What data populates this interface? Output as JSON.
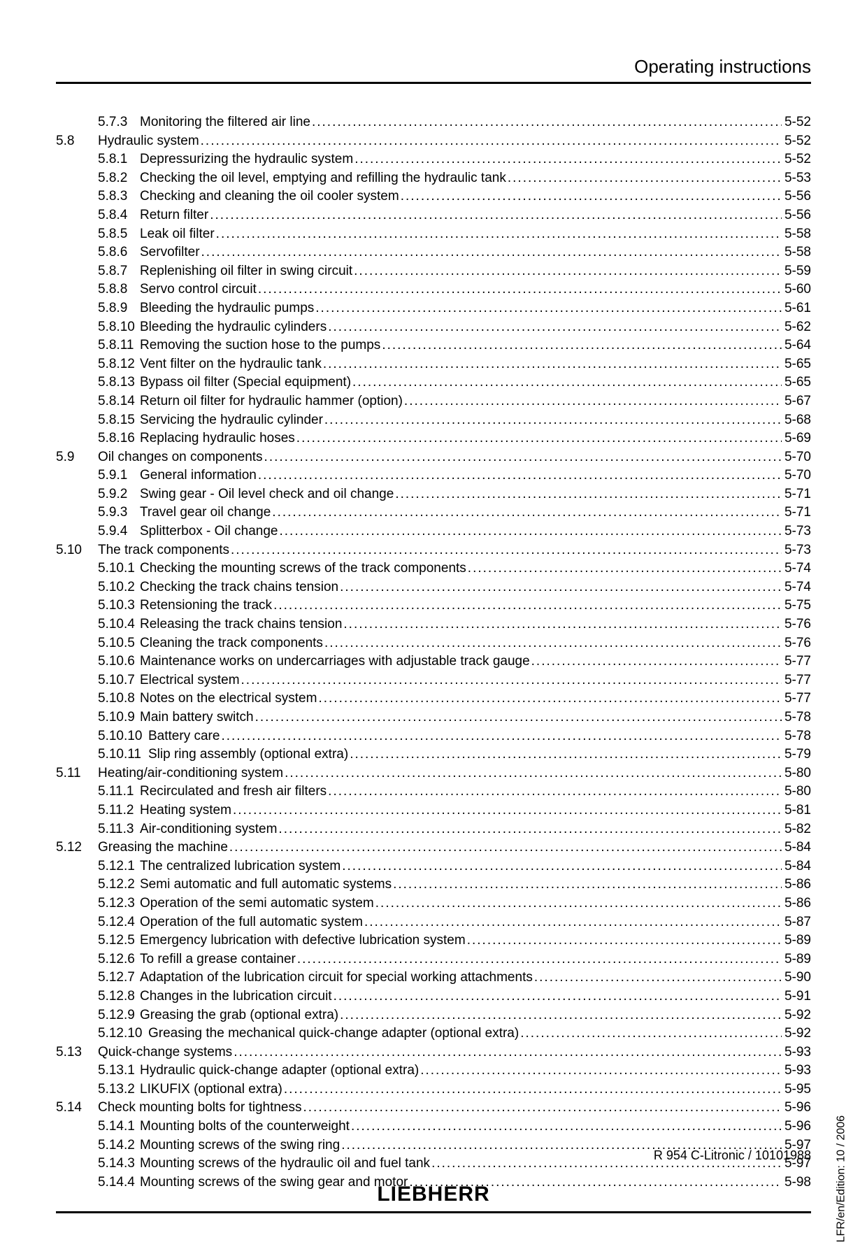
{
  "header": {
    "title": "Operating instructions"
  },
  "sideText": "LFR/en/Edition: 10 / 2006",
  "footer": {
    "docid": "R 954 C-Litronic / 10101988",
    "logo": "LIEBHERR"
  },
  "toc": [
    {
      "level": "sub",
      "num": "5.7.3",
      "numWidth": "60px",
      "title": "Monitoring the filtered air line",
      "page": "5-52"
    },
    {
      "level": "section",
      "num": "5.8",
      "title": "Hydraulic system",
      "page": "5-52"
    },
    {
      "level": "sub",
      "num": "5.8.1",
      "numWidth": "60px",
      "title": "Depressurizing the hydraulic system ",
      "page": "5-52"
    },
    {
      "level": "sub",
      "num": "5.8.2",
      "numWidth": "60px",
      "title": "Checking the oil level, emptying and refilling the hydraulic tank",
      "page": "5-53"
    },
    {
      "level": "sub",
      "num": "5.8.3",
      "numWidth": "60px",
      "title": "Checking and cleaning the oil cooler system",
      "page": "5-56"
    },
    {
      "level": "sub",
      "num": "5.8.4",
      "numWidth": "60px",
      "title": "Return filter ",
      "page": "5-56"
    },
    {
      "level": "sub",
      "num": "5.8.5",
      "numWidth": "60px",
      "title": "Leak oil filter",
      "page": "5-58"
    },
    {
      "level": "sub",
      "num": "5.8.6",
      "numWidth": "60px",
      "title": "Servofilter",
      "page": "5-58"
    },
    {
      "level": "sub",
      "num": "5.8.7",
      "numWidth": "60px",
      "title": "Replenishing oil filter in swing circuit ",
      "page": "5-59"
    },
    {
      "level": "sub",
      "num": "5.8.8",
      "numWidth": "60px",
      "title": "Servo control circuit ",
      "page": "5-60"
    },
    {
      "level": "sub",
      "num": "5.8.9",
      "numWidth": "60px",
      "title": "Bleeding the hydraulic pumps",
      "page": "5-61"
    },
    {
      "level": "sub",
      "num": "5.8.10",
      "numWidth": "60px",
      "title": "Bleeding the hydraulic cylinders ",
      "page": "5-62"
    },
    {
      "level": "sub",
      "num": "5.8.11",
      "numWidth": "60px",
      "title": "Removing the suction hose to the pumps",
      "page": "5-64"
    },
    {
      "level": "sub",
      "num": "5.8.12",
      "numWidth": "60px",
      "title": "Vent filter on the hydraulic tank ",
      "page": "5-65"
    },
    {
      "level": "sub",
      "num": "5.8.13",
      "numWidth": "60px",
      "title": "Bypass oil filter (Special equipment)",
      "page": "5-65"
    },
    {
      "level": "sub",
      "num": "5.8.14",
      "numWidth": "60px",
      "title": "Return oil filter for hydraulic hammer (option)",
      "page": "5-67"
    },
    {
      "level": "sub",
      "num": "5.8.15",
      "numWidth": "60px",
      "title": "Servicing the hydraulic cylinder ",
      "page": "5-68"
    },
    {
      "level": "sub",
      "num": "5.8.16",
      "numWidth": "60px",
      "title": "Replacing hydraulic hoses",
      "page": "5-69"
    },
    {
      "level": "section",
      "num": "5.9",
      "title": "Oil changes on components ",
      "page": "5-70"
    },
    {
      "level": "sub",
      "num": "5.9.1",
      "numWidth": "60px",
      "title": "General information ",
      "page": "5-70"
    },
    {
      "level": "sub",
      "num": "5.9.2",
      "numWidth": "60px",
      "title": "Swing gear - Oil level check and oil change ",
      "page": "5-71"
    },
    {
      "level": "sub",
      "num": "5.9.3",
      "numWidth": "60px",
      "title": "Travel gear oil change ",
      "page": "5-71"
    },
    {
      "level": "sub",
      "num": "5.9.4",
      "numWidth": "60px",
      "title": "Splitterbox - Oil change ",
      "page": "5-73"
    },
    {
      "level": "section",
      "num": "5.10",
      "title": "The track components ",
      "page": "5-73"
    },
    {
      "level": "sub",
      "num": "5.10.1",
      "numWidth": "60px",
      "title": "Checking the mounting screws of the track components ",
      "page": "5-74"
    },
    {
      "level": "sub",
      "num": "5.10.2",
      "numWidth": "60px",
      "title": "Checking the track chains tension ",
      "page": "5-74"
    },
    {
      "level": "sub",
      "num": "5.10.3",
      "numWidth": "60px",
      "title": "Retensioning the track ",
      "page": "5-75"
    },
    {
      "level": "sub",
      "num": "5.10.4",
      "numWidth": "60px",
      "title": "Releasing the track chains tension ",
      "page": "5-76"
    },
    {
      "level": "sub",
      "num": "5.10.5",
      "numWidth": "60px",
      "title": "Cleaning the track components ",
      "page": "5-76"
    },
    {
      "level": "sub",
      "num": "5.10.6",
      "numWidth": "60px",
      "title": "Maintenance works on undercarriages with adjustable track gauge ",
      "page": "5-77"
    },
    {
      "level": "sub",
      "num": "5.10.7",
      "numWidth": "60px",
      "title": "Electrical system",
      "page": "5-77"
    },
    {
      "level": "sub",
      "num": "5.10.8",
      "numWidth": "60px",
      "title": "Notes on the electrical system",
      "page": "5-77"
    },
    {
      "level": "sub",
      "num": "5.10.9",
      "numWidth": "60px",
      "title": "Main battery switch ",
      "page": "5-78"
    },
    {
      "level": "sub",
      "num": "5.10.10",
      "numWidth": "72px",
      "title": "Battery care",
      "page": "5-78"
    },
    {
      "level": "sub",
      "num": "5.10.11",
      "numWidth": "72px",
      "title": "Slip ring assembly (optional extra)",
      "page": "5-79"
    },
    {
      "level": "section",
      "num": "5.11",
      "title": "Heating/air-conditioning system",
      "page": "5-80"
    },
    {
      "level": "sub",
      "num": "5.11.1",
      "numWidth": "60px",
      "title": "Recirculated and fresh air filters ",
      "page": "5-80"
    },
    {
      "level": "sub",
      "num": "5.11.2",
      "numWidth": "60px",
      "title": "Heating system",
      "page": "5-81"
    },
    {
      "level": "sub",
      "num": "5.11.3",
      "numWidth": "60px",
      "title": "Air-conditioning system",
      "page": "5-82"
    },
    {
      "level": "section",
      "num": "5.12",
      "title": "Greasing the machine",
      "page": "5-84"
    },
    {
      "level": "sub",
      "num": "5.12.1",
      "numWidth": "60px",
      "title": "The centralized lubrication system ",
      "page": "5-84"
    },
    {
      "level": "sub",
      "num": "5.12.2",
      "numWidth": "60px",
      "title": "Semi automatic and full automatic systems",
      "page": "5-86"
    },
    {
      "level": "sub",
      "num": "5.12.3",
      "numWidth": "60px",
      "title": "Operation of the semi automatic system ",
      "page": "5-86"
    },
    {
      "level": "sub",
      "num": "5.12.4",
      "numWidth": "60px",
      "title": "Operation of the full automatic system ",
      "page": "5-87"
    },
    {
      "level": "sub",
      "num": "5.12.5",
      "numWidth": "60px",
      "title": "Emergency lubrication with defective lubrication system",
      "page": "5-89"
    },
    {
      "level": "sub",
      "num": "5.12.6",
      "numWidth": "60px",
      "title": "To refill a grease container ",
      "page": "5-89"
    },
    {
      "level": "sub",
      "num": "5.12.7",
      "numWidth": "60px",
      "title": "Adaptation of the lubrication circuit for special working attachments ",
      "page": "5-90"
    },
    {
      "level": "sub",
      "num": "5.12.8",
      "numWidth": "60px",
      "title": "Changes in the lubrication circuit",
      "page": "5-91"
    },
    {
      "level": "sub",
      "num": "5.12.9",
      "numWidth": "60px",
      "title": "Greasing the grab (optional extra)",
      "page": "5-92"
    },
    {
      "level": "sub",
      "num": "5.12.10",
      "numWidth": "72px",
      "title": "Greasing the mechanical quick-change adapter (optional extra)",
      "page": "5-92"
    },
    {
      "level": "section",
      "num": "5.13",
      "title": "Quick-change systems",
      "page": "5-93"
    },
    {
      "level": "sub",
      "num": "5.13.1",
      "numWidth": "60px",
      "title": "Hydraulic quick-change adapter (optional extra) ",
      "page": "5-93"
    },
    {
      "level": "sub",
      "num": "5.13.2",
      "numWidth": "60px",
      "title": "LIKUFIX (optional extra) ",
      "page": "5-95"
    },
    {
      "level": "section",
      "num": "5.14",
      "title": "Check mounting bolts for tightness",
      "page": "5-96"
    },
    {
      "level": "sub",
      "num": "5.14.1",
      "numWidth": "60px",
      "title": "Mounting bolts of the counterweight",
      "page": "5-96"
    },
    {
      "level": "sub",
      "num": "5.14.2",
      "numWidth": "60px",
      "title": "Mounting screws of the swing ring",
      "page": "5-97"
    },
    {
      "level": "sub",
      "num": "5.14.3",
      "numWidth": "60px",
      "title": "Mounting screws of the hydraulic oil and fuel tank ",
      "page": "5-97"
    },
    {
      "level": "sub",
      "num": "5.14.4",
      "numWidth": "60px",
      "title": "Mounting screws of the swing gear and motor ",
      "page": "5-98"
    }
  ]
}
